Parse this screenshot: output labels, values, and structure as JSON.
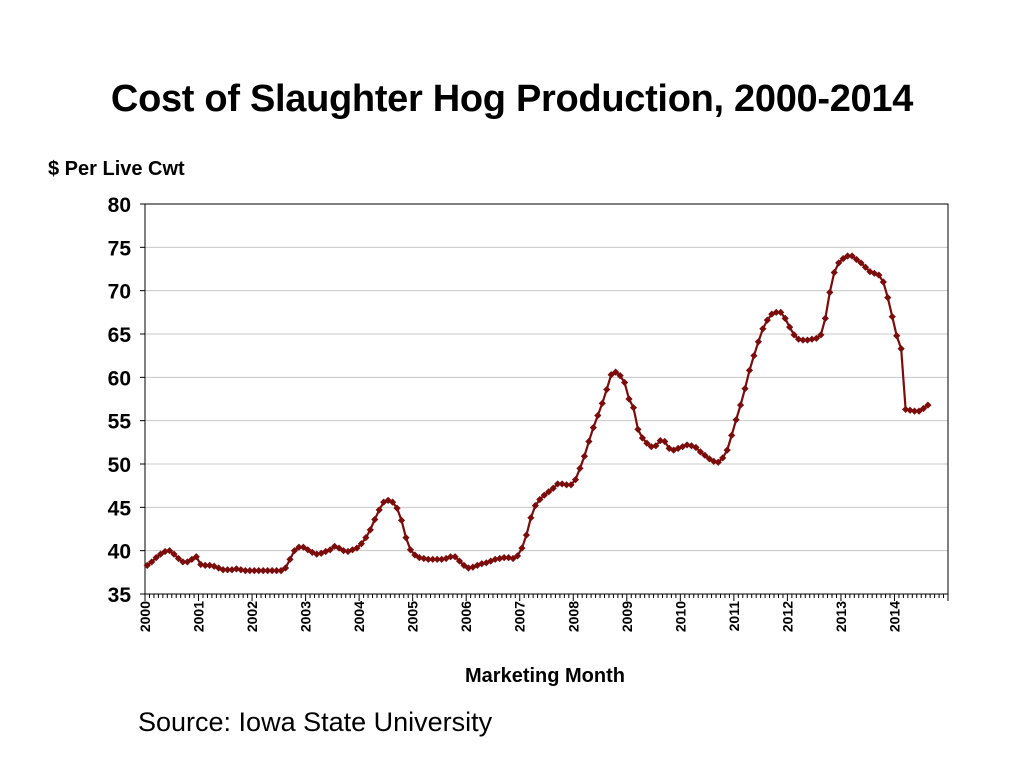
{
  "chart_data": {
    "type": "line",
    "title": "Cost of Slaughter Hog Production, 2000-2014",
    "ylabel": "$ Per Live Cwt",
    "xlabel": "Marketing Month",
    "ylim": [
      35,
      80
    ],
    "yticks": [
      35,
      40,
      45,
      50,
      55,
      60,
      65,
      70,
      75,
      80
    ],
    "x_tick_labels": [
      "2000",
      "2001",
      "2002",
      "2003",
      "2004",
      "2005",
      "2006",
      "2007",
      "2008",
      "2009",
      "2010",
      "2011",
      "2012",
      "2013",
      "2014"
    ],
    "x_start": "2000-01",
    "grid": true,
    "series_color": "#7b0c0c",
    "series": [
      {
        "values": [
          38.3,
          38.7,
          39.2,
          39.6,
          39.9,
          40.0,
          39.6,
          39.1,
          38.7,
          38.7,
          39.0,
          39.3,
          38.4,
          38.3,
          38.3,
          38.2,
          38.0,
          37.8,
          37.8,
          37.8,
          37.9,
          37.8,
          37.7,
          37.7,
          37.7,
          37.7,
          37.7,
          37.7,
          37.7,
          37.7,
          37.7,
          38.0,
          39.0,
          40.0,
          40.4,
          40.4,
          40.1,
          39.8,
          39.6,
          39.7,
          39.9,
          40.1,
          40.5,
          40.3,
          40.0,
          39.9,
          40.1,
          40.3,
          40.8,
          41.5,
          42.4,
          43.6,
          44.7,
          45.6,
          45.8,
          45.6,
          44.9,
          43.5,
          41.5,
          40.1,
          39.5,
          39.2,
          39.1,
          39.0,
          39.0,
          39.0,
          39.0,
          39.1,
          39.3,
          39.3,
          38.8,
          38.3,
          38.0,
          38.1,
          38.3,
          38.5,
          38.6,
          38.8,
          39.0,
          39.1,
          39.2,
          39.2,
          39.1,
          39.4,
          40.3,
          41.8,
          43.8,
          45.2,
          45.9,
          46.4,
          46.8,
          47.2,
          47.7,
          47.7,
          47.6,
          47.6,
          48.2,
          49.5,
          50.9,
          52.6,
          54.2,
          55.6,
          57.0,
          58.6,
          60.3,
          60.6,
          60.2,
          59.4,
          57.5,
          56.5,
          54.0,
          53.0,
          52.4,
          52.0,
          52.1,
          52.7,
          52.6,
          51.8,
          51.6,
          51.8,
          52.0,
          52.2,
          52.1,
          51.9,
          51.4,
          51.0,
          50.6,
          50.3,
          50.2,
          50.7,
          51.6,
          53.3,
          55.1,
          56.8,
          58.7,
          60.8,
          62.5,
          64.1,
          65.6,
          66.6,
          67.3,
          67.5,
          67.5,
          66.8,
          65.8,
          64.9,
          64.4,
          64.3,
          64.3,
          64.4,
          64.5,
          64.9,
          66.8,
          69.8,
          72.1,
          73.2,
          73.7,
          74.0,
          74.0,
          73.6,
          73.2,
          72.7,
          72.2,
          72.0,
          71.8,
          71.0,
          69.2,
          67.0,
          64.8,
          63.3,
          56.3,
          56.2,
          56.1,
          56.1,
          56.4,
          56.8
        ]
      }
    ]
  },
  "footer": {
    "source": "Source: Iowa State University"
  }
}
